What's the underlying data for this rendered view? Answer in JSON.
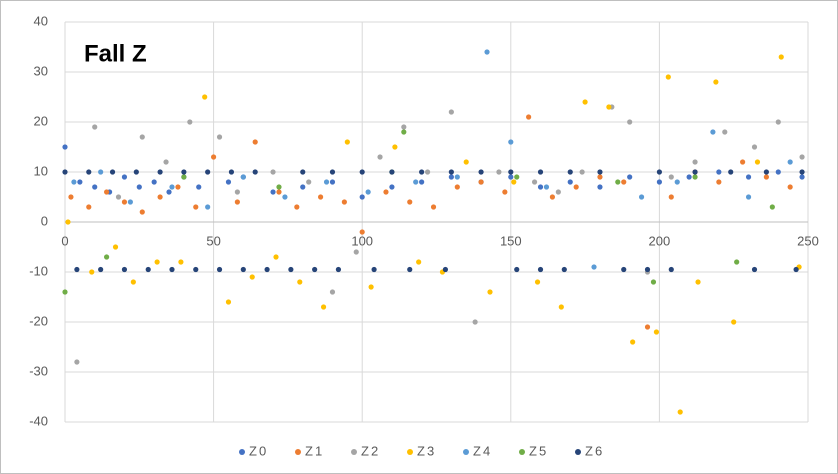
{
  "chart_data": {
    "type": "scatter",
    "title": "Fall Z",
    "xlim": [
      0,
      250
    ],
    "xticks": [
      0,
      50,
      100,
      150,
      200,
      250
    ],
    "ylim": [
      -40,
      40
    ],
    "yticks": [
      -40,
      -30,
      -20,
      -10,
      0,
      10,
      20,
      30,
      40
    ],
    "grid": true,
    "legend": "bottom",
    "series": [
      {
        "name": "Z0",
        "color": "#4472c4",
        "x": [
          0,
          5,
          10,
          15,
          20,
          25,
          30,
          35,
          40,
          45,
          55,
          60,
          70,
          80,
          90,
          100,
          110,
          120,
          130,
          140,
          150,
          160,
          170,
          180,
          190,
          200,
          210,
          220,
          230,
          240,
          248
        ],
        "values": [
          15,
          8,
          7,
          6,
          9,
          7,
          8,
          6,
          9,
          7,
          8,
          9,
          6,
          7,
          8,
          5,
          7,
          8,
          9,
          8,
          9,
          7,
          8,
          7,
          9,
          8,
          9,
          10,
          9,
          10,
          9
        ]
      },
      {
        "name": "Z1",
        "color": "#ed7d31",
        "x": [
          2,
          8,
          14,
          20,
          26,
          32,
          38,
          44,
          50,
          58,
          64,
          72,
          78,
          86,
          94,
          100,
          108,
          116,
          124,
          132,
          140,
          148,
          156,
          164,
          172,
          180,
          188,
          196,
          204,
          212,
          220,
          228,
          236,
          244
        ],
        "values": [
          5,
          3,
          6,
          4,
          2,
          5,
          7,
          3,
          13,
          4,
          16,
          6,
          3,
          5,
          4,
          -2,
          6,
          4,
          3,
          7,
          8,
          6,
          21,
          5,
          7,
          9,
          8,
          -21,
          5,
          10,
          8,
          12,
          9,
          7
        ]
      },
      {
        "name": "Z2",
        "color": "#a5a5a5",
        "x": [
          4,
          10,
          18,
          26,
          34,
          42,
          52,
          58,
          70,
          82,
          90,
          98,
          106,
          114,
          122,
          130,
          138,
          146,
          158,
          166,
          174,
          184,
          190,
          196,
          204,
          212,
          222,
          232,
          240,
          248
        ],
        "values": [
          -28,
          19,
          5,
          17,
          12,
          20,
          17,
          6,
          10,
          8,
          -14,
          -6,
          13,
          19,
          10,
          22,
          -20,
          10,
          8,
          6,
          10,
          23,
          20,
          -10,
          9,
          12,
          18,
          15,
          20,
          13
        ]
      },
      {
        "name": "Z3",
        "color": "#ffc000",
        "x": [
          1,
          9,
          17,
          23,
          31,
          39,
          47,
          55,
          63,
          71,
          79,
          87,
          95,
          103,
          111,
          119,
          127,
          135,
          143,
          151,
          159,
          167,
          175,
          183,
          191,
          199,
          203,
          207,
          213,
          219,
          225,
          233,
          241,
          247
        ],
        "values": [
          0,
          -10,
          -5,
          -12,
          -8,
          -8,
          25,
          -16,
          -11,
          -7,
          -12,
          -17,
          16,
          -13,
          15,
          -8,
          -10,
          12,
          -14,
          8,
          -12,
          -17,
          24,
          23,
          -24,
          -22,
          29,
          -38,
          -12,
          28,
          -20,
          12,
          33,
          -9
        ]
      },
      {
        "name": "Z4",
        "color": "#5b9bd5",
        "x": [
          3,
          12,
          22,
          36,
          48,
          60,
          74,
          88,
          102,
          118,
          132,
          142,
          150,
          162,
          178,
          194,
          206,
          218,
          230,
          244
        ],
        "values": [
          8,
          10,
          4,
          7,
          3,
          9,
          5,
          8,
          6,
          8,
          9,
          34,
          16,
          7,
          -9,
          5,
          8,
          18,
          5,
          12
        ]
      },
      {
        "name": "Z5",
        "color": "#70ad47",
        "x": [
          0,
          14,
          40,
          72,
          110,
          114,
          152,
          186,
          198,
          212,
          226,
          238
        ],
        "values": [
          -14,
          -7,
          9,
          7,
          10,
          18,
          9,
          8,
          -12,
          9,
          -8,
          3
        ]
      },
      {
        "name": "Z6",
        "color": "#264478",
        "x": [
          0,
          8,
          16,
          24,
          32,
          40,
          48,
          56,
          64,
          80,
          90,
          100,
          110,
          120,
          130,
          140,
          150,
          160,
          170,
          180,
          200,
          212,
          224,
          236,
          248,
          4,
          12,
          20,
          28,
          36,
          44,
          52,
          60,
          68,
          76,
          84,
          92,
          104,
          116,
          128,
          152,
          160,
          168,
          188,
          196,
          204,
          232,
          246
        ],
        "values": [
          10,
          10,
          10,
          10,
          10,
          10,
          10,
          10,
          10,
          10,
          10,
          10,
          10,
          10,
          10,
          10,
          10,
          10,
          10,
          10,
          10,
          10,
          10,
          10,
          10,
          -9.5,
          -9.5,
          -9.5,
          -9.5,
          -9.5,
          -9.5,
          -9.5,
          -9.5,
          -9.5,
          -9.5,
          -9.5,
          -9.5,
          -9.5,
          -9.5,
          -9.5,
          -9.5,
          -9.5,
          -9.5,
          -9.5,
          -9.5,
          -9.5,
          -9.5,
          -9.5
        ]
      }
    ]
  }
}
